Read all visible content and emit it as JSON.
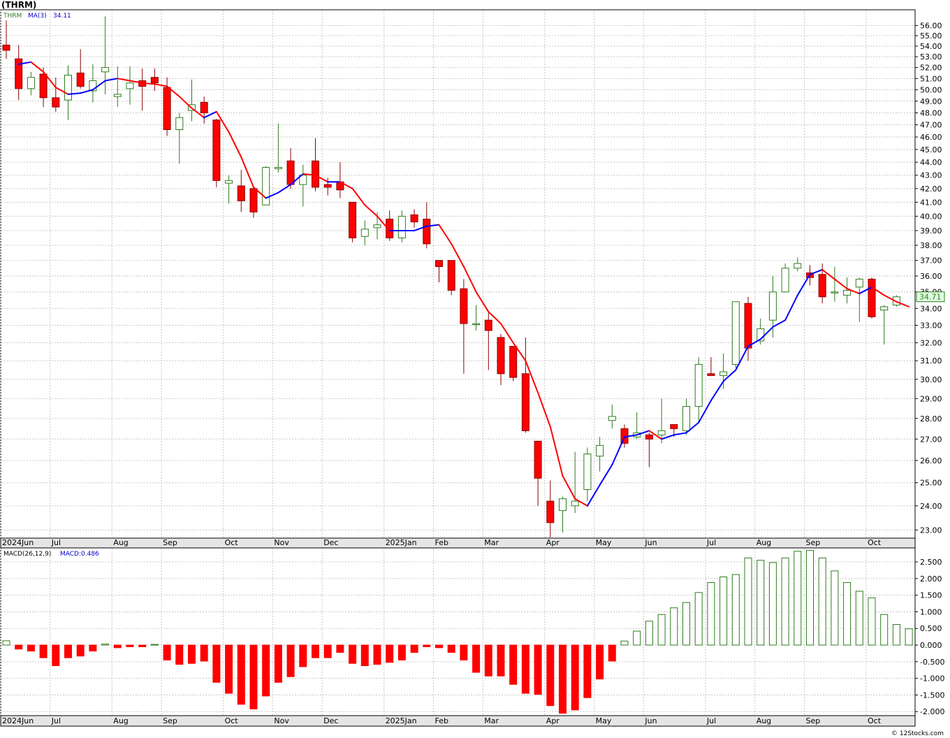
{
  "title": "(THRM)",
  "footer": "© 12Stocks.com",
  "colors": {
    "up": "#2e7d1e",
    "down": "#ff0000",
    "ma_up": "#0000ff",
    "ma_down": "#ff0000",
    "grid": "#c8c8c8",
    "axis_band": "#e5e5e5",
    "price_tag_bg": "#e0ffe0",
    "price_tag_text": "#2e7d1e"
  },
  "price_panel": {
    "legend_symbol": "THRM",
    "legend_ma": "MA(3)",
    "legend_ma_value": "34.11",
    "last_price_label": "34.71",
    "y_ticks": [
      "23.00",
      "24.00",
      "25.00",
      "26.00",
      "27.00",
      "28.00",
      "29.00",
      "30.00",
      "31.00",
      "32.00",
      "33.00",
      "34.00",
      "35.00",
      "36.00",
      "37.00",
      "38.00",
      "39.00",
      "40.00",
      "41.00",
      "42.00",
      "43.00",
      "44.00",
      "45.00",
      "46.00",
      "47.00",
      "48.00",
      "49.00",
      "50.00",
      "51.00",
      "52.00",
      "53.00",
      "54.00",
      "55.00",
      "56.00"
    ]
  },
  "macd_panel": {
    "legend_macd": "MACD(26,12,9)",
    "legend_macd_value": "MACD:0.486",
    "y_ticks": [
      "-2.000",
      "-1.500",
      "-1.000",
      "-0.500",
      "0.000",
      "0.500",
      "1.000",
      "1.500",
      "2.000",
      "2.500"
    ]
  },
  "x_labels": [
    "2024Jun",
    "Jul",
    "Aug",
    "Sep",
    "Oct",
    "Nov",
    "Dec",
    "2025Jan",
    "Feb",
    "Mar",
    "Apr",
    "May",
    "Jun",
    "Jul",
    "Aug",
    "Sep",
    "Oct"
  ],
  "chart_data": [
    {
      "type": "candlestick",
      "title": "(THRM)",
      "scale": "log",
      "ylim": [
        22.7,
        57.5
      ],
      "x_labels": [
        "2024Jun",
        "Jul",
        "Aug",
        "Sep",
        "Oct",
        "Nov",
        "Dec",
        "2025Jan",
        "Feb",
        "Mar",
        "Apr",
        "May",
        "Jun",
        "Jul",
        "Aug",
        "Sep",
        "Oct"
      ],
      "x_label_week_index": [
        0,
        4,
        9,
        13,
        18,
        22,
        26,
        31,
        35,
        39,
        44,
        48,
        52,
        57,
        61,
        65,
        70
      ],
      "candles": [
        {
          "o": 54.1,
          "h": 56.5,
          "l": 52.8,
          "c": 53.6
        },
        {
          "o": 52.8,
          "h": 54.1,
          "l": 49.1,
          "c": 50.1
        },
        {
          "o": 50.1,
          "h": 51.6,
          "l": 49.5,
          "c": 51.1
        },
        {
          "o": 51.4,
          "h": 52.0,
          "l": 48.5,
          "c": 49.3
        },
        {
          "o": 49.3,
          "h": 51.1,
          "l": 48.1,
          "c": 48.5
        },
        {
          "o": 49.1,
          "h": 52.2,
          "l": 47.4,
          "c": 51.3
        },
        {
          "o": 51.5,
          "h": 53.7,
          "l": 50.1,
          "c": 50.3
        },
        {
          "o": 49.9,
          "h": 52.3,
          "l": 48.9,
          "c": 50.8
        },
        {
          "o": 51.6,
          "h": 56.9,
          "l": 49.6,
          "c": 52.0
        },
        {
          "o": 49.4,
          "h": 52.1,
          "l": 48.5,
          "c": 49.6
        },
        {
          "o": 50.1,
          "h": 52.1,
          "l": 48.7,
          "c": 50.6
        },
        {
          "o": 50.8,
          "h": 51.9,
          "l": 48.2,
          "c": 50.3
        },
        {
          "o": 51.1,
          "h": 51.9,
          "l": 49.9,
          "c": 50.6
        },
        {
          "o": 50.2,
          "h": 51.1,
          "l": 46.1,
          "c": 46.6
        },
        {
          "o": 46.6,
          "h": 48.0,
          "l": 43.9,
          "c": 47.6
        },
        {
          "o": 48.2,
          "h": 50.9,
          "l": 47.3,
          "c": 48.7
        },
        {
          "o": 48.9,
          "h": 49.4,
          "l": 47.1,
          "c": 48.0
        },
        {
          "o": 47.4,
          "h": 47.5,
          "l": 42.1,
          "c": 42.6
        },
        {
          "o": 42.4,
          "h": 43.0,
          "l": 40.9,
          "c": 42.6
        },
        {
          "o": 42.2,
          "h": 43.4,
          "l": 40.3,
          "c": 41.1
        },
        {
          "o": 42.0,
          "h": 42.0,
          "l": 39.9,
          "c": 40.3
        },
        {
          "o": 40.8,
          "h": 43.7,
          "l": 40.8,
          "c": 43.6
        },
        {
          "o": 43.5,
          "h": 47.1,
          "l": 43.2,
          "c": 43.6
        },
        {
          "o": 44.1,
          "h": 45.1,
          "l": 42.0,
          "c": 42.3
        },
        {
          "o": 42.3,
          "h": 43.8,
          "l": 40.7,
          "c": 43.0
        },
        {
          "o": 44.1,
          "h": 45.9,
          "l": 41.8,
          "c": 42.1
        },
        {
          "o": 42.3,
          "h": 42.8,
          "l": 41.5,
          "c": 42.1
        },
        {
          "o": 42.5,
          "h": 44.0,
          "l": 41.3,
          "c": 41.9
        },
        {
          "o": 41.0,
          "h": 41.0,
          "l": 38.2,
          "c": 38.5
        },
        {
          "o": 38.6,
          "h": 39.7,
          "l": 38.0,
          "c": 39.1
        },
        {
          "o": 39.2,
          "h": 40.3,
          "l": 38.4,
          "c": 39.4
        },
        {
          "o": 39.8,
          "h": 40.4,
          "l": 38.3,
          "c": 38.5
        },
        {
          "o": 38.5,
          "h": 40.4,
          "l": 38.2,
          "c": 40.0
        },
        {
          "o": 40.1,
          "h": 40.5,
          "l": 39.2,
          "c": 39.6
        },
        {
          "o": 39.8,
          "h": 41.0,
          "l": 37.8,
          "c": 38.1
        },
        {
          "o": 37.0,
          "h": 37.0,
          "l": 35.6,
          "c": 36.6
        },
        {
          "o": 37.0,
          "h": 37.0,
          "l": 34.8,
          "c": 35.1
        },
        {
          "o": 35.2,
          "h": 35.8,
          "l": 30.3,
          "c": 33.1
        },
        {
          "o": 33.1,
          "h": 34.2,
          "l": 32.7,
          "c": 33.1
        },
        {
          "o": 33.3,
          "h": 33.8,
          "l": 30.5,
          "c": 32.7
        },
        {
          "o": 32.3,
          "h": 32.5,
          "l": 29.7,
          "c": 30.3
        },
        {
          "o": 31.8,
          "h": 31.8,
          "l": 29.9,
          "c": 30.1
        },
        {
          "o": 30.3,
          "h": 32.3,
          "l": 27.3,
          "c": 27.4
        },
        {
          "o": 26.9,
          "h": 26.9,
          "l": 24.0,
          "c": 25.2
        },
        {
          "o": 24.2,
          "h": 25.1,
          "l": 22.7,
          "c": 23.3
        },
        {
          "o": 23.8,
          "h": 24.4,
          "l": 22.9,
          "c": 24.3
        },
        {
          "o": 24.0,
          "h": 26.4,
          "l": 23.7,
          "c": 24.2
        },
        {
          "o": 24.7,
          "h": 26.6,
          "l": 24.2,
          "c": 26.3
        },
        {
          "o": 26.2,
          "h": 27.1,
          "l": 25.5,
          "c": 26.7
        },
        {
          "o": 27.9,
          "h": 28.7,
          "l": 27.5,
          "c": 28.1
        },
        {
          "o": 27.5,
          "h": 27.7,
          "l": 26.6,
          "c": 26.8
        },
        {
          "o": 27.1,
          "h": 28.3,
          "l": 27.0,
          "c": 27.3
        },
        {
          "o": 27.2,
          "h": 27.3,
          "l": 25.7,
          "c": 27.0
        },
        {
          "o": 27.2,
          "h": 29.0,
          "l": 26.8,
          "c": 27.4
        },
        {
          "o": 27.7,
          "h": 27.7,
          "l": 27.1,
          "c": 27.5
        },
        {
          "o": 27.4,
          "h": 29.0,
          "l": 27.2,
          "c": 28.6
        },
        {
          "o": 28.6,
          "h": 31.2,
          "l": 27.8,
          "c": 30.8
        },
        {
          "o": 30.3,
          "h": 31.2,
          "l": 30.2,
          "c": 30.2
        },
        {
          "o": 30.2,
          "h": 31.4,
          "l": 29.5,
          "c": 30.4
        },
        {
          "o": 30.8,
          "h": 34.4,
          "l": 30.6,
          "c": 34.4
        },
        {
          "o": 34.3,
          "h": 34.7,
          "l": 31.0,
          "c": 31.7
        },
        {
          "o": 32.1,
          "h": 33.4,
          "l": 31.9,
          "c": 32.8
        },
        {
          "o": 33.3,
          "h": 36.0,
          "l": 32.3,
          "c": 35.0
        },
        {
          "o": 35.0,
          "h": 36.8,
          "l": 35.0,
          "c": 36.5
        },
        {
          "o": 36.5,
          "h": 37.2,
          "l": 36.3,
          "c": 36.8
        },
        {
          "o": 36.2,
          "h": 36.7,
          "l": 35.4,
          "c": 35.9
        },
        {
          "o": 36.1,
          "h": 36.8,
          "l": 34.3,
          "c": 34.7
        },
        {
          "o": 35.0,
          "h": 36.6,
          "l": 34.4,
          "c": 35.0
        },
        {
          "o": 34.8,
          "h": 35.9,
          "l": 34.3,
          "c": 35.1
        },
        {
          "o": 35.3,
          "h": 35.9,
          "l": 33.2,
          "c": 35.8
        },
        {
          "o": 35.8,
          "h": 35.9,
          "l": 33.4,
          "c": 33.5
        },
        {
          "o": 33.9,
          "h": 34.2,
          "l": 31.9,
          "c": 34.1
        },
        {
          "o": 34.2,
          "h": 34.8,
          "l": 34.1,
          "c": 34.7
        }
      ],
      "ma3": [
        52.3,
        52.5,
        51.6,
        50.2,
        49.6,
        49.7,
        50.0,
        50.8,
        51.0,
        50.8,
        50.6,
        50.5,
        50.3,
        49.4,
        48.4,
        47.6,
        48.1,
        46.4,
        44.4,
        42.1,
        41.3,
        41.7,
        42.3,
        43.1,
        43.0,
        42.5,
        42.5,
        42.0,
        40.8,
        40.0,
        39.0,
        39.0,
        39.0,
        39.3,
        39.4,
        38.1,
        36.6,
        35.0,
        33.8,
        33.1,
        32.0,
        31.0,
        29.3,
        27.6,
        25.3,
        24.3,
        24.0,
        24.9,
        25.8,
        27.1,
        27.2,
        27.4,
        27.0,
        27.2,
        27.3,
        27.8,
        28.9,
        29.9,
        30.5,
        31.8,
        32.2,
        32.9,
        33.3,
        34.8,
        36.1,
        36.4,
        35.8,
        35.2,
        34.9,
        35.3,
        34.8,
        34.4,
        34.1
      ],
      "series": [
        {
          "name": "MA(3)"
        }
      ]
    },
    {
      "type": "bar",
      "title": "MACD(26,12,9)",
      "ylim": [
        -2.1,
        2.9
      ],
      "x_labels": [
        "2024Jun",
        "Jul",
        "Aug",
        "Sep",
        "Oct",
        "Nov",
        "Dec",
        "2025Jan",
        "Feb",
        "Mar",
        "Apr",
        "May",
        "Jun",
        "Jul",
        "Aug",
        "Sep",
        "Oct"
      ],
      "series": [
        {
          "name": "MACD",
          "values": [
            0.13,
            -0.12,
            -0.18,
            -0.38,
            -0.62,
            -0.38,
            -0.33,
            -0.18,
            0.03,
            -0.08,
            -0.05,
            -0.05,
            0.02,
            -0.45,
            -0.58,
            -0.55,
            -0.48,
            -1.12,
            -1.45,
            -1.78,
            -1.92,
            -1.53,
            -1.12,
            -0.95,
            -0.65,
            -0.38,
            -0.38,
            -0.22,
            -0.55,
            -0.62,
            -0.58,
            -0.52,
            -0.45,
            -0.22,
            -0.05,
            -0.08,
            -0.22,
            -0.45,
            -0.82,
            -0.93,
            -0.93,
            -1.18,
            -1.45,
            -1.48,
            -1.82,
            -2.05,
            -1.95,
            -1.58,
            -1.02,
            -0.48,
            0.12,
            0.42,
            0.72,
            0.92,
            1.12,
            1.28,
            1.58,
            1.88,
            2.05,
            2.12,
            2.62,
            2.55,
            2.48,
            2.62,
            2.82,
            2.85,
            2.62,
            2.23,
            1.88,
            1.62,
            1.42,
            0.92,
            0.62,
            0.49
          ]
        }
      ]
    }
  ]
}
